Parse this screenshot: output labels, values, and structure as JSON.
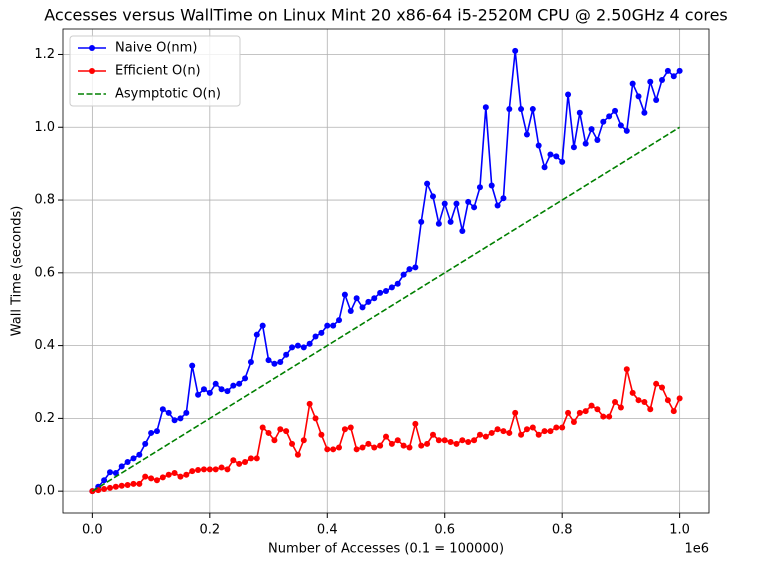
{
  "chart_data": {
    "type": "line",
    "title": "Accesses versus WallTime on Linux Mint 20 x86-64 i5-2520M CPU @ 2.50GHz 4 cores",
    "x_label": "Number of Accesses (0.1 = 100000)",
    "y_label": "Wall Time (seconds)",
    "x_offset_label": "1e6",
    "x": [
      0,
      10000,
      20000,
      30000,
      40000,
      50000,
      60000,
      70000,
      80000,
      90000,
      100000,
      110000,
      120000,
      130000,
      140000,
      150000,
      160000,
      170000,
      180000,
      190000,
      200000,
      210000,
      220000,
      230000,
      240000,
      250000,
      260000,
      270000,
      280000,
      290000,
      300000,
      310000,
      320000,
      330000,
      340000,
      350000,
      360000,
      370000,
      380000,
      390000,
      400000,
      410000,
      420000,
      430000,
      440000,
      450000,
      460000,
      470000,
      480000,
      490000,
      500000,
      510000,
      520000,
      530000,
      540000,
      550000,
      560000,
      570000,
      580000,
      590000,
      600000,
      610000,
      620000,
      630000,
      640000,
      650000,
      660000,
      670000,
      680000,
      690000,
      700000,
      710000,
      720000,
      730000,
      740000,
      750000,
      760000,
      770000,
      780000,
      790000,
      800000,
      810000,
      820000,
      830000,
      840000,
      850000,
      860000,
      870000,
      880000,
      890000,
      900000,
      910000,
      920000,
      930000,
      940000,
      950000,
      960000,
      970000,
      980000,
      990000,
      1000000
    ],
    "series": [
      {
        "name": "Naive O(nm)",
        "color": "#0000ff",
        "line_style": "solid",
        "marker": "o",
        "values": [
          0,
          0.012,
          0.03,
          0.052,
          0.05,
          0.068,
          0.08,
          0.09,
          0.1,
          0.13,
          0.16,
          0.165,
          0.225,
          0.215,
          0.195,
          0.2,
          0.215,
          0.345,
          0.265,
          0.28,
          0.27,
          0.295,
          0.28,
          0.275,
          0.29,
          0.295,
          0.31,
          0.355,
          0.43,
          0.455,
          0.36,
          0.35,
          0.355,
          0.375,
          0.395,
          0.4,
          0.395,
          0.405,
          0.425,
          0.435,
          0.455,
          0.455,
          0.47,
          0.54,
          0.495,
          0.53,
          0.505,
          0.52,
          0.53,
          0.545,
          0.55,
          0.56,
          0.57,
          0.595,
          0.61,
          0.615,
          0.74,
          0.845,
          0.81,
          0.735,
          0.79,
          0.74,
          0.79,
          0.715,
          0.795,
          0.78,
          0.835,
          1.055,
          0.84,
          0.785,
          0.805,
          1.05,
          1.21,
          1.05,
          0.98,
          1.05,
          0.95,
          0.89,
          0.925,
          0.92,
          0.905,
          1.09,
          0.945,
          1.04,
          0.955,
          0.995,
          0.965,
          1.015,
          1.03,
          1.045,
          1.005,
          0.99,
          1.12,
          1.085,
          1.04,
          1.125,
          1.075,
          1.13,
          1.155,
          1.14,
          1.155
        ]
      },
      {
        "name": "Efficient O(n)",
        "color": "#ff0000",
        "line_style": "solid",
        "marker": "o",
        "values": [
          0,
          0.003,
          0.006,
          0.009,
          0.012,
          0.015,
          0.017,
          0.02,
          0.02,
          0.04,
          0.035,
          0.03,
          0.038,
          0.045,
          0.05,
          0.04,
          0.045,
          0.055,
          0.058,
          0.06,
          0.06,
          0.06,
          0.065,
          0.06,
          0.085,
          0.075,
          0.08,
          0.09,
          0.09,
          0.175,
          0.16,
          0.14,
          0.17,
          0.165,
          0.13,
          0.1,
          0.14,
          0.24,
          0.2,
          0.155,
          0.115,
          0.115,
          0.12,
          0.17,
          0.175,
          0.115,
          0.12,
          0.13,
          0.12,
          0.125,
          0.15,
          0.13,
          0.14,
          0.125,
          0.12,
          0.185,
          0.125,
          0.13,
          0.155,
          0.14,
          0.14,
          0.135,
          0.13,
          0.14,
          0.135,
          0.14,
          0.155,
          0.15,
          0.16,
          0.17,
          0.165,
          0.16,
          0.215,
          0.155,
          0.17,
          0.175,
          0.155,
          0.165,
          0.165,
          0.175,
          0.175,
          0.215,
          0.19,
          0.215,
          0.22,
          0.235,
          0.225,
          0.205,
          0.205,
          0.245,
          0.23,
          0.335,
          0.27,
          0.25,
          0.245,
          0.225,
          0.295,
          0.285,
          0.25,
          0.22,
          0.255
        ]
      },
      {
        "name": "Asymptotic O(n)",
        "color": "#008000",
        "line_style": "dashed",
        "marker": "none",
        "x": [
          0,
          1000000
        ],
        "values": [
          0,
          1
        ]
      }
    ],
    "xlim": [
      -50000,
      1050000
    ],
    "ylim": [
      -0.06,
      1.27
    ],
    "xticks": [
      {
        "value": 0,
        "label": "0.0"
      },
      {
        "value": 200000,
        "label": "0.2"
      },
      {
        "value": 400000,
        "label": "0.4"
      },
      {
        "value": 600000,
        "label": "0.6"
      },
      {
        "value": 800000,
        "label": "0.8"
      },
      {
        "value": 1000000,
        "label": "1.0"
      }
    ],
    "yticks": [
      {
        "value": 0,
        "label": "0.0"
      },
      0.2,
      0.4,
      0.6,
      0.8,
      {
        "value": 1,
        "label": "1.0"
      },
      1.2
    ],
    "grid": true,
    "legend": "upper left"
  }
}
